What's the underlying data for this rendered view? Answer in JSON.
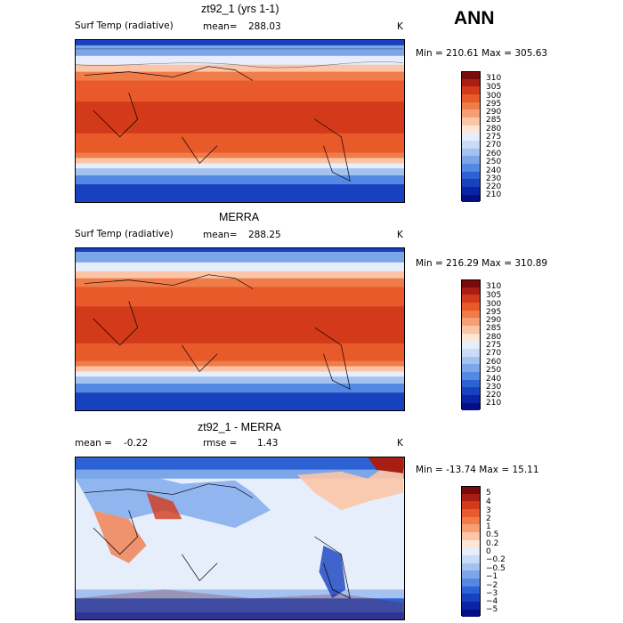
{
  "season": "ANN",
  "panels": [
    {
      "title": "zt92_1 (yrs 1-1)",
      "left_label": "Surf Temp (radiative)",
      "mid_label": "mean=",
      "mid_value": "288.03",
      "unit": "K",
      "minmax": "Min = 210.61 Max = 305.63",
      "colors": [
        "#7a0b0b",
        "#a81e12",
        "#d33a1a",
        "#e85a2a",
        "#f07c4a",
        "#f79f74",
        "#fcc5a7",
        "#fde6d8",
        "#e6eefc",
        "#c9dbf6",
        "#a4c2f0",
        "#7ca6ea",
        "#5489e3",
        "#2d62d5",
        "#1841bf",
        "#0a24a5",
        "#030f82"
      ],
      "ticks": [
        "310",
        "305",
        "300",
        "295",
        "290",
        "285",
        "280",
        "275",
        "270",
        "260",
        "250",
        "240",
        "230",
        "220",
        "210"
      ]
    },
    {
      "title": "MERRA",
      "left_label": "Surf Temp (radiative)",
      "mid_label": "mean=",
      "mid_value": "288.25",
      "unit": "K",
      "minmax": "Min = 216.29 Max = 310.89",
      "colors": [
        "#7a0b0b",
        "#a81e12",
        "#d33a1a",
        "#e85a2a",
        "#f07c4a",
        "#f79f74",
        "#fcc5a7",
        "#fde6d8",
        "#e6eefc",
        "#c9dbf6",
        "#a4c2f0",
        "#7ca6ea",
        "#5489e3",
        "#2d62d5",
        "#1841bf",
        "#0a24a5",
        "#030f82"
      ],
      "ticks": [
        "310",
        "305",
        "300",
        "295",
        "290",
        "285",
        "280",
        "275",
        "270",
        "260",
        "250",
        "240",
        "230",
        "220",
        "210"
      ]
    },
    {
      "title": "zt92_1 - MERRA",
      "left_label": "mean =",
      "left_value": "-0.22",
      "mid_label": "rmse =",
      "mid_value": "1.43",
      "unit": "K",
      "minmax": "Min = -13.74 Max =  15.11",
      "colors": [
        "#7a0b0b",
        "#a81e12",
        "#d33a1a",
        "#e85a2a",
        "#f07c4a",
        "#f79f74",
        "#fcc5a7",
        "#fde6d8",
        "#e6eefc",
        "#c9dbf6",
        "#a4c2f0",
        "#7ca6ea",
        "#5489e3",
        "#2d62d5",
        "#1841bf",
        "#0a24a5",
        "#030f82"
      ],
      "ticks": [
        "5",
        "4",
        "3",
        "2",
        "1",
        "0.5",
        "0.2",
        "0",
        "−0.2",
        "−0.5",
        "−1",
        "−2",
        "−3",
        "−4",
        "−5"
      ]
    }
  ]
}
